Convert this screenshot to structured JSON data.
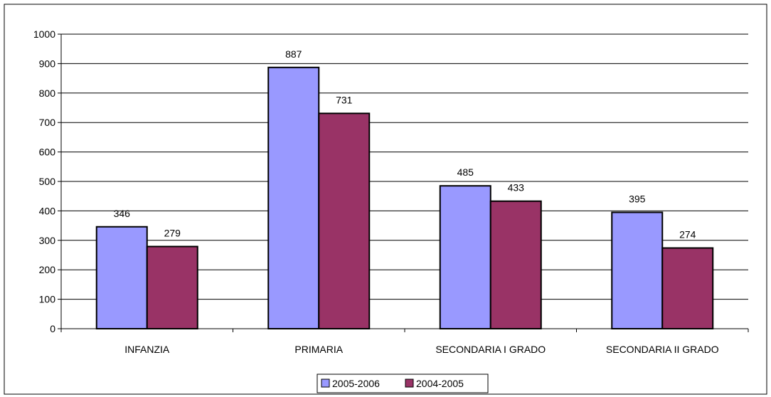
{
  "chart_data": {
    "type": "bar",
    "categories": [
      "INFANZIA",
      "PRIMARIA",
      "SECONDARIA I GRADO",
      "SECONDARIA II GRADO"
    ],
    "series": [
      {
        "name": "2005-2006",
        "values": [
          346,
          887,
          485,
          395
        ],
        "color": "#9999FF"
      },
      {
        "name": "2004-2005",
        "values": [
          279,
          731,
          433,
          274
        ],
        "color": "#993366"
      }
    ],
    "ylim": [
      0,
      1000
    ],
    "yticks": [
      0,
      100,
      200,
      300,
      400,
      500,
      600,
      700,
      800,
      900,
      1000
    ],
    "grid": true,
    "legend_position": "bottom",
    "data_labels": true
  }
}
